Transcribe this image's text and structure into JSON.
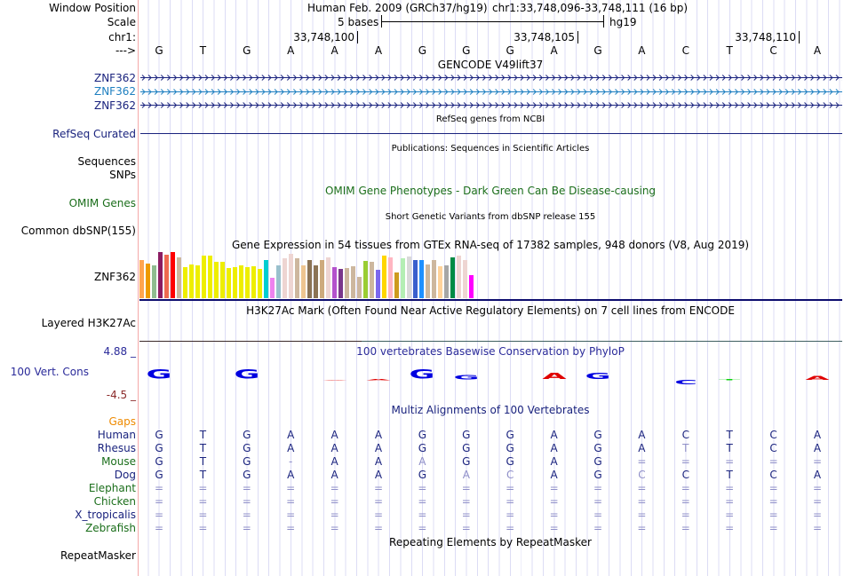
{
  "header": {
    "window_position_label": "Window Position",
    "scale_label": "Scale",
    "chr_label": "chr1:",
    "strand_label": "--->",
    "assembly": "Human Feb. 2009 (GRCh37/hg19)",
    "position": "chr1:33,748,096-33,748,111 (16 bp)",
    "scale_text": "5 bases",
    "scale_db": "hg19",
    "ticks": [
      "33,748,100",
      "33,748,105",
      "33,748,110"
    ]
  },
  "sequence": [
    "G",
    "T",
    "G",
    "A",
    "A",
    "A",
    "G",
    "G",
    "G",
    "A",
    "G",
    "A",
    "C",
    "T",
    "C",
    "A"
  ],
  "gencode": {
    "title": "GENCODE V49lift37",
    "genes": [
      {
        "name": "ZNF362",
        "color": "#1a237e"
      },
      {
        "name": "ZNF362",
        "color": "#1e7fc0"
      },
      {
        "name": "ZNF362",
        "color": "#1a237e"
      }
    ]
  },
  "refseq": {
    "title": "RefSeq genes from NCBI",
    "label": "RefSeq Curated"
  },
  "publications": {
    "title": "Publications: Sequences in Scientific Articles",
    "labels": [
      "Sequences",
      "SNPs"
    ]
  },
  "omim": {
    "title": "OMIM Gene Phenotypes - Dark Green Can Be Disease-causing",
    "label": "OMIM Genes"
  },
  "dbsnp": {
    "title": "Short Genetic Variants from dbSNP release 155",
    "label": "Common dbSNP(155)"
  },
  "gtex": {
    "title": "Gene Expression in 54 tissues from GTEx RNA-seq of 17382 samples, 948 donors (V8, Aug 2019)",
    "label": "ZNF362",
    "values": [
      43,
      39,
      37,
      52,
      49,
      52,
      46,
      35,
      38,
      37,
      48,
      48,
      41,
      41,
      34,
      35,
      37,
      35,
      36,
      33,
      43,
      23,
      37,
      45,
      50,
      45,
      37,
      43,
      37,
      43,
      46,
      35,
      33,
      34,
      36,
      24,
      42,
      41,
      32,
      48,
      46,
      29,
      45,
      47,
      43,
      43,
      38,
      43,
      36,
      37,
      46,
      48,
      43,
      26
    ],
    "colors": [
      "#FFA54F",
      "#EE9A00",
      "#8FBC8F",
      "#8B1C62",
      "#EE6A50",
      "#FF0000",
      "#CDB79E",
      "#EEEE00",
      "#EEEE00",
      "#EEEE00",
      "#EEEE00",
      "#EEEE00",
      "#EEEE00",
      "#EEEE00",
      "#EEEE00",
      "#EEEE00",
      "#EEEE00",
      "#EEEE00",
      "#EEEE00",
      "#EEEE00",
      "#00CED1",
      "#EE82EE",
      "#9AC0CD",
      "#EED5D2",
      "#EED5D2",
      "#CDB79E",
      "#EEC591",
      "#8B7355",
      "#8B7355",
      "#CDAA7D",
      "#EED5D2",
      "#B452CD",
      "#7A378B",
      "#CDB79E",
      "#CDB79E",
      "#CDB79E",
      "#9ACD32",
      "#CDB79E",
      "#7B68EE",
      "#FFD700",
      "#FFB6C1",
      "#CD9B1D",
      "#B4EEB4",
      "#D9D9D9",
      "#3A5FCD",
      "#1E90FF",
      "#CDB79E",
      "#CDB79E",
      "#FFD39B",
      "#A6A6A6",
      "#008B45",
      "#EED5D2",
      "#EED5D2",
      "#FF00FF"
    ]
  },
  "h3k27ac": {
    "title": "H3K27Ac Mark (Often Found Near Active Regulatory Elements) on 7 cell lines from ENCODE",
    "label": "Layered H3K27Ac"
  },
  "phylop": {
    "title": "100 vertebrates Basewise Conservation by PhyloP",
    "label": "100 Vert. Cons",
    "max": "4.88 _",
    "min": "-4.5 _",
    "scores": [
      3.0,
      0,
      3.0,
      0,
      0.1,
      0.3,
      3.0,
      1.5,
      0,
      2.0,
      2.0,
      0,
      -1.5,
      0.3,
      0,
      1.2
    ]
  },
  "multiz": {
    "title": "Multiz Alignments of 100 Vertebrates",
    "gaps_label": "Gaps",
    "species": [
      {
        "name": "Human",
        "color": "#1a237e",
        "bases": [
          "G",
          "T",
          "G",
          "A",
          "A",
          "A",
          "G",
          "G",
          "G",
          "A",
          "G",
          "A",
          "C",
          "T",
          "C",
          "A"
        ],
        "faded": []
      },
      {
        "name": "Rhesus",
        "color": "#1a237e",
        "bases": [
          "G",
          "T",
          "G",
          "A",
          "A",
          "A",
          "G",
          "G",
          "G",
          "A",
          "G",
          "A",
          "T",
          "T",
          "C",
          "A"
        ],
        "faded": [
          12
        ]
      },
      {
        "name": "Mouse",
        "color": "#1b6e1b",
        "bases": [
          "G",
          "T",
          "G",
          "-",
          "A",
          "A",
          "A",
          "G",
          "G",
          "A",
          "G",
          "=",
          "=",
          "=",
          "=",
          "="
        ],
        "faded": [
          3,
          6
        ]
      },
      {
        "name": "Dog",
        "color": "#1a237e",
        "bases": [
          "G",
          "T",
          "G",
          "A",
          "A",
          "A",
          "G",
          "A",
          "C",
          "A",
          "G",
          "C",
          "C",
          "T",
          "C",
          "A"
        ],
        "faded": [
          7,
          8,
          11
        ]
      },
      {
        "name": "Elephant",
        "color": "#1b6e1b",
        "bases": [
          "=",
          "=",
          "=",
          "=",
          "=",
          "=",
          "=",
          "=",
          "=",
          "=",
          "=",
          "=",
          "=",
          "=",
          "=",
          "="
        ],
        "faded": []
      },
      {
        "name": "Chicken",
        "color": "#1b6e1b",
        "bases": [
          "=",
          "=",
          "=",
          "=",
          "=",
          "=",
          "=",
          "=",
          "=",
          "=",
          "=",
          "=",
          "=",
          "=",
          "=",
          "="
        ],
        "faded": []
      },
      {
        "name": "X_tropicalis",
        "color": "#1a237e",
        "bases": [
          "=",
          "=",
          "=",
          "=",
          "=",
          "=",
          "=",
          "=",
          "=",
          "=",
          "=",
          "=",
          "=",
          "=",
          "=",
          "="
        ],
        "faded": []
      },
      {
        "name": "Zebrafish",
        "color": "#1b6e1b",
        "bases": [
          "=",
          "=",
          "=",
          "=",
          "=",
          "=",
          "=",
          "=",
          "=",
          "=",
          "=",
          "=",
          "=",
          "=",
          "=",
          "="
        ],
        "faded": []
      }
    ]
  },
  "repeatmasker": {
    "title": "Repeating Elements by RepeatMasker",
    "label": "RepeatMasker"
  }
}
